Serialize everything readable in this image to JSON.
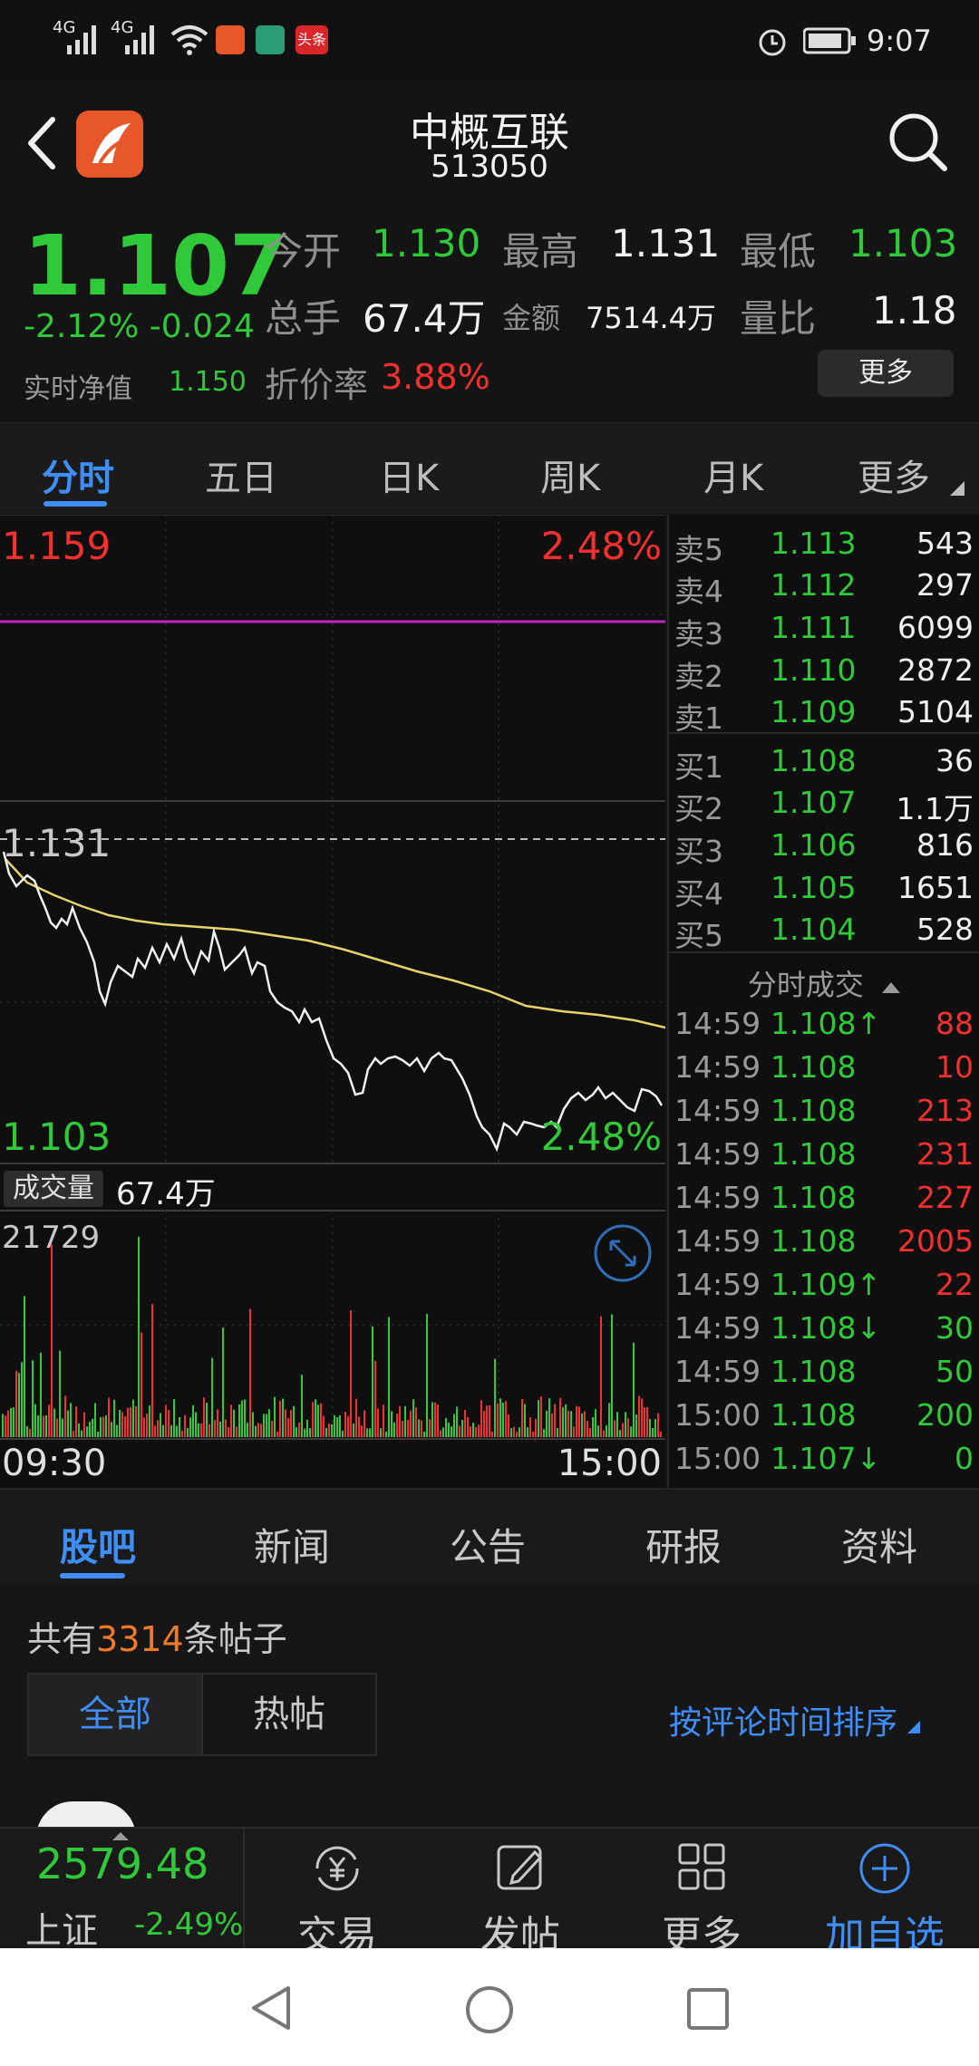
{
  "status_bar": {
    "signal1": "4G",
    "signal2": "4G",
    "app_badge": "头条",
    "time": "9:07"
  },
  "header": {
    "title": "中概互联",
    "code": "513050"
  },
  "quote": {
    "price": "1.107",
    "change": "-2.12% -0.024",
    "nav_label": "实时净值",
    "nav_value": "1.150",
    "open_label": "今开",
    "open_value": "1.130",
    "high_label": "最高",
    "high_value": "1.131",
    "low_label": "最低",
    "low_value": "1.103",
    "volume_label": "总手",
    "volume_value": "67.4万",
    "amount_label": "金额",
    "amount_value": "7514.4万",
    "ratio_label": "量比",
    "ratio_value": "1.18",
    "discount_label": "折价率",
    "discount_value": "3.88%",
    "more_label": "更多"
  },
  "chart_tabs": [
    "分时",
    "五日",
    "日K",
    "周K",
    "月K",
    "更多"
  ],
  "chart": {
    "top_price": "1.159",
    "top_pct": "2.48%",
    "mid_price": "1.131",
    "bottom_price": "1.103",
    "bottom_pct": "2.48%",
    "volume_label": "成交量",
    "volume_value": "67.4万",
    "vol_max": "21729",
    "time_start": "09:30",
    "time_end": "15:00"
  },
  "order_book": {
    "asks": [
      {
        "name": "卖5",
        "price": "1.113",
        "vol": "543"
      },
      {
        "name": "卖4",
        "price": "1.112",
        "vol": "297"
      },
      {
        "name": "卖3",
        "price": "1.111",
        "vol": "6099"
      },
      {
        "name": "卖2",
        "price": "1.110",
        "vol": "2872"
      },
      {
        "name": "卖1",
        "price": "1.109",
        "vol": "5104"
      }
    ],
    "bids": [
      {
        "name": "买1",
        "price": "1.108",
        "vol": "36"
      },
      {
        "name": "买2",
        "price": "1.107",
        "vol": "1.1万"
      },
      {
        "name": "买3",
        "price": "1.106",
        "vol": "816"
      },
      {
        "name": "买4",
        "price": "1.105",
        "vol": "1651"
      },
      {
        "name": "买5",
        "price": "1.104",
        "vol": "528"
      }
    ],
    "trades_header": "分时成交",
    "trades": [
      {
        "time": "14:59",
        "price": "1.108↑",
        "vol": "88",
        "side": "buy"
      },
      {
        "time": "14:59",
        "price": "1.108",
        "vol": "10",
        "side": "buy"
      },
      {
        "time": "14:59",
        "price": "1.108",
        "vol": "213",
        "side": "buy"
      },
      {
        "time": "14:59",
        "price": "1.108",
        "vol": "231",
        "side": "buy"
      },
      {
        "time": "14:59",
        "price": "1.108",
        "vol": "227",
        "side": "buy"
      },
      {
        "time": "14:59",
        "price": "1.108",
        "vol": "2005",
        "side": "buy"
      },
      {
        "time": "14:59",
        "price": "1.109↑",
        "vol": "22",
        "side": "buy"
      },
      {
        "time": "14:59",
        "price": "1.108↓",
        "vol": "30",
        "side": "sell"
      },
      {
        "time": "14:59",
        "price": "1.108",
        "vol": "50",
        "side": "sell"
      },
      {
        "time": "15:00",
        "price": "1.108",
        "vol": "200",
        "side": "sell"
      },
      {
        "time": "15:00",
        "price": "1.107↓",
        "vol": "0",
        "side": "sell"
      }
    ]
  },
  "sub_tabs": [
    "股吧",
    "新闻",
    "公告",
    "研报",
    "资料"
  ],
  "posts": {
    "count_prefix": "共有",
    "count": "3314",
    "count_suffix": "条帖子",
    "seg_all": "全部",
    "seg_hot": "热帖",
    "sort_label": "按评论时间排序"
  },
  "footer": {
    "index_value": "2579.48",
    "index_name": "上证",
    "index_change": "-2.49%",
    "trade_label": "交易",
    "post_label": "发帖",
    "more_label": "更多",
    "add_label": "加自选"
  },
  "colors": {
    "up": "#f2302f",
    "down": "#2fc93a",
    "accent": "#3f8ef5",
    "avg_line": "#e7d36b",
    "prev_close": "#c026c2"
  }
}
